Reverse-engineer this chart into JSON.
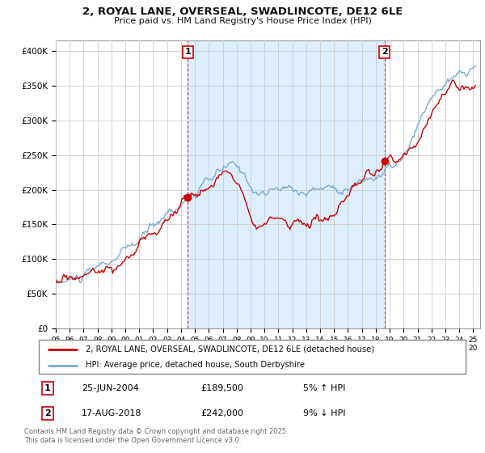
{
  "title_line1": "2, ROYAL LANE, OVERSEAL, SWADLINCOTE, DE12 6LE",
  "title_line2": "Price paid vs. HM Land Registry's House Price Index (HPI)",
  "ylabel_ticks": [
    "£0",
    "£50K",
    "£100K",
    "£150K",
    "£200K",
    "£250K",
    "£300K",
    "£350K",
    "£400K"
  ],
  "ytick_values": [
    0,
    50000,
    100000,
    150000,
    200000,
    250000,
    300000,
    350000,
    400000
  ],
  "ylim": [
    0,
    415000
  ],
  "xlim_start": 1995.0,
  "xlim_end": 2025.5,
  "plot_bg_color": "#ffffff",
  "shade_color": "#ddeeff",
  "hpi_color": "#7aaad0",
  "price_color": "#cc0000",
  "sale1_date": 2004.48,
  "sale1_price": 189500,
  "sale2_date": 2018.63,
  "sale2_price": 242000,
  "legend_label1": "2, ROYAL LANE, OVERSEAL, SWADLINCOTE, DE12 6LE (detached house)",
  "legend_label2": "HPI: Average price, detached house, South Derbyshire",
  "annotation1_date": "25-JUN-2004",
  "annotation1_price": "£189,500",
  "annotation1_pct": "5% ↑ HPI",
  "annotation2_date": "17-AUG-2018",
  "annotation2_price": "£242,000",
  "annotation2_pct": "9% ↓ HPI",
  "footer": "Contains HM Land Registry data © Crown copyright and database right 2025.\nThis data is licensed under the Open Government Licence v3.0."
}
